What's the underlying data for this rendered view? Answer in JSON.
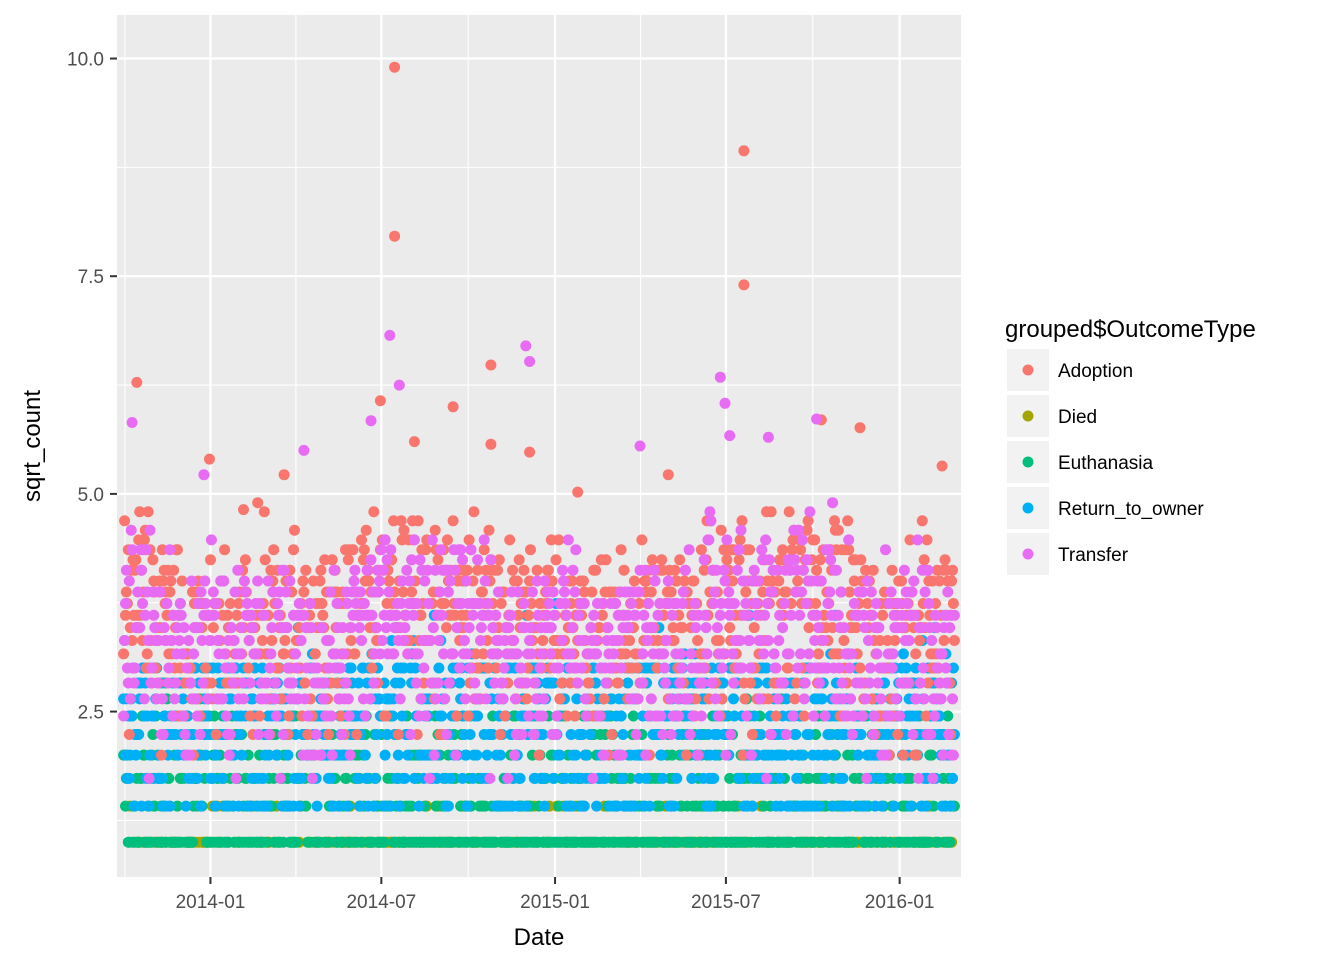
{
  "chart_data": {
    "type": "scatter",
    "xlabel": "Date",
    "ylabel": "sqrt_count",
    "x_ticks": [
      "2014-01",
      "2014-07",
      "2015-01",
      "2015-07",
      "2016-01"
    ],
    "y_ticks": [
      "2.5",
      "5.0",
      "7.5",
      "10.0"
    ],
    "x_range": [
      "2013-09-24",
      "2016-03-06"
    ],
    "ylim": [
      0.6,
      10.5
    ],
    "x_scale": "date",
    "grid": true,
    "panel_background": "#ebebeb",
    "grid_color": "#ffffff",
    "legend": {
      "title": "grouped$OutcomeType",
      "placement": "right"
    },
    "series": [
      {
        "name": "Adoption",
        "color": "#f8766d",
        "value_range": [
          1,
          9.9
        ],
        "notable_points": [
          {
            "x": "2013-10-15",
            "y": 6.28
          },
          {
            "x": "2013-12-31",
            "y": 5.4
          },
          {
            "x": "2014-02-05",
            "y": 4.82
          },
          {
            "x": "2014-03-20",
            "y": 5.22
          },
          {
            "x": "2014-06-30",
            "y": 6.07
          },
          {
            "x": "2014-07-15",
            "y": 9.9
          },
          {
            "x": "2014-07-15",
            "y": 7.96
          },
          {
            "x": "2014-08-05",
            "y": 5.6
          },
          {
            "x": "2014-09-15",
            "y": 6.0
          },
          {
            "x": "2014-10-25",
            "y": 6.48
          },
          {
            "x": "2014-10-25",
            "y": 5.57
          },
          {
            "x": "2014-12-05",
            "y": 5.48
          },
          {
            "x": "2015-01-25",
            "y": 5.02
          },
          {
            "x": "2015-05-01",
            "y": 5.22
          },
          {
            "x": "2015-07-20",
            "y": 8.94
          },
          {
            "x": "2015-07-20",
            "y": 7.4
          },
          {
            "x": "2015-10-10",
            "y": 5.85
          },
          {
            "x": "2015-11-20",
            "y": 5.76
          },
          {
            "x": "2016-02-15",
            "y": 5.32
          }
        ]
      },
      {
        "name": "Died",
        "color": "#a3a500",
        "value_range": [
          1,
          1.73
        ]
      },
      {
        "name": "Euthanasia",
        "color": "#00bf7d",
        "value_range": [
          1,
          3.0
        ]
      },
      {
        "name": "Return_to_owner",
        "color": "#00b0f6",
        "value_range": [
          1,
          4.2
        ]
      },
      {
        "name": "Transfer",
        "color": "#e76bf3",
        "value_range": [
          1.73,
          6.82
        ],
        "notable_points": [
          {
            "x": "2013-10-10",
            "y": 5.82
          },
          {
            "x": "2013-12-25",
            "y": 5.22
          },
          {
            "x": "2014-04-10",
            "y": 5.5
          },
          {
            "x": "2014-06-20",
            "y": 5.84
          },
          {
            "x": "2014-07-10",
            "y": 6.82
          },
          {
            "x": "2014-07-20",
            "y": 6.25
          },
          {
            "x": "2014-12-01",
            "y": 6.7
          },
          {
            "x": "2014-12-05",
            "y": 6.52
          },
          {
            "x": "2015-04-01",
            "y": 5.55
          },
          {
            "x": "2015-06-25",
            "y": 6.34
          },
          {
            "x": "2015-06-30",
            "y": 6.04
          },
          {
            "x": "2015-07-05",
            "y": 5.67
          },
          {
            "x": "2015-08-15",
            "y": 5.65
          },
          {
            "x": "2015-10-05",
            "y": 5.86
          }
        ]
      }
    ]
  }
}
